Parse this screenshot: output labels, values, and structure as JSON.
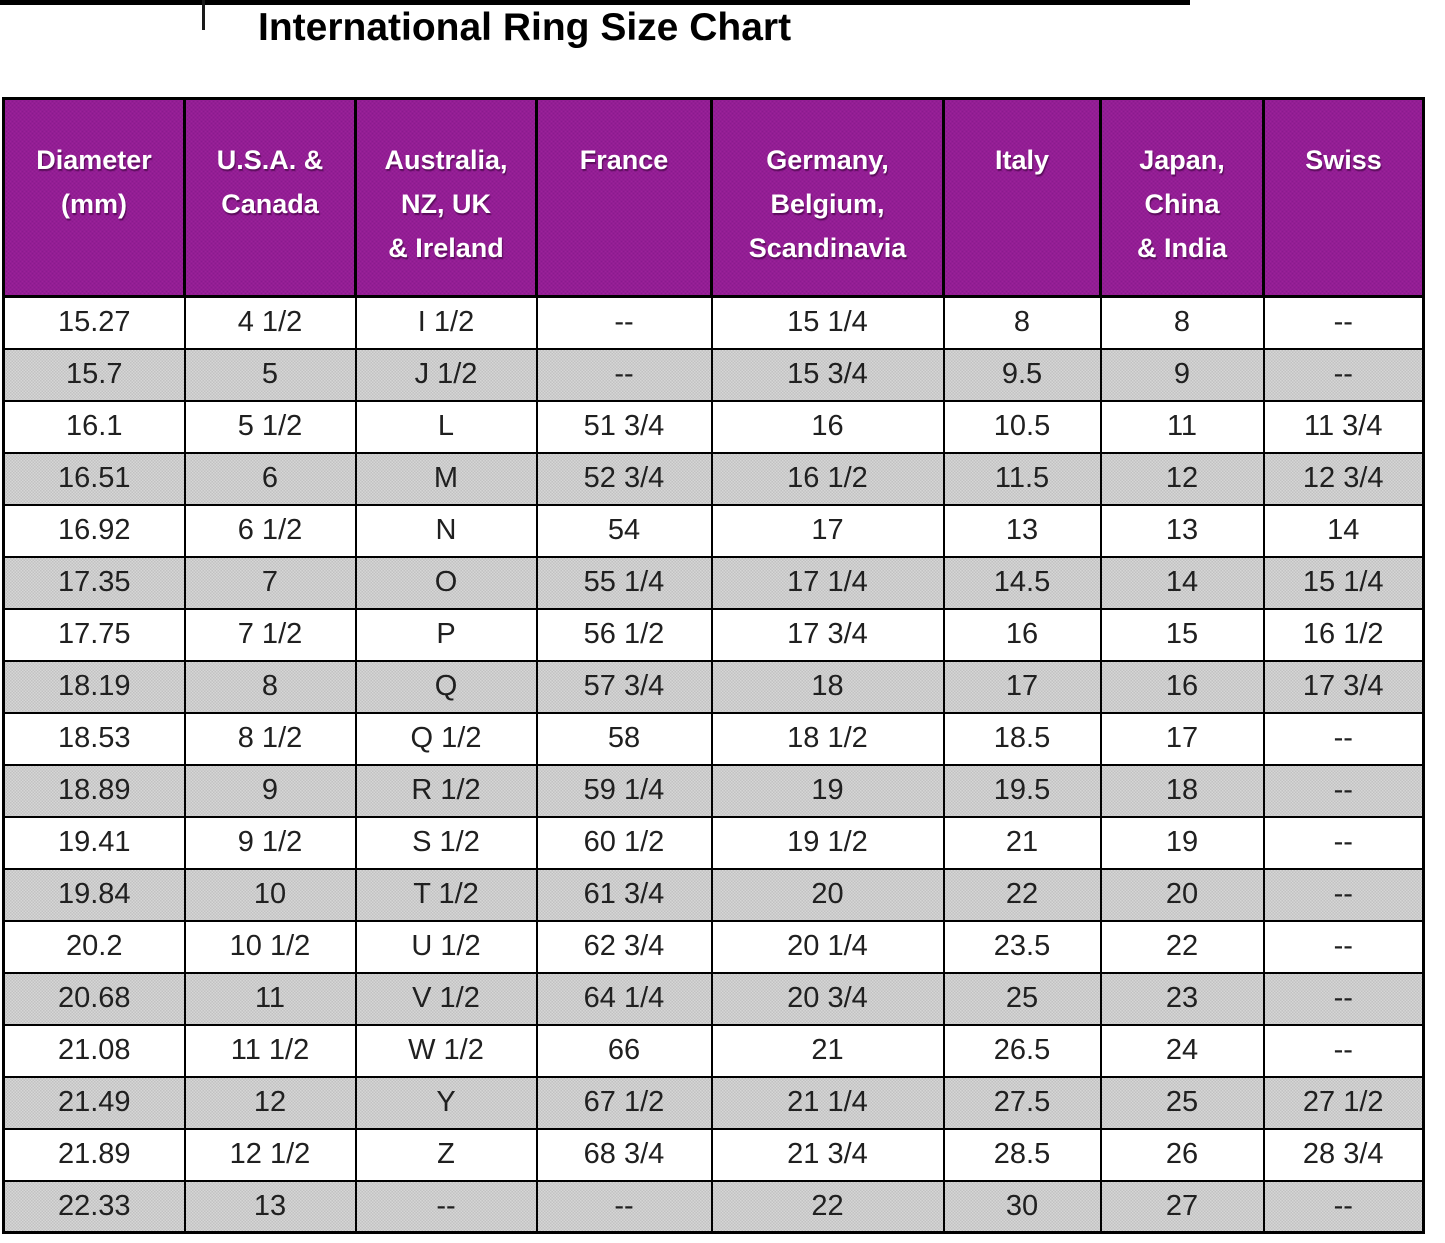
{
  "title": "International Ring Size Chart",
  "table": {
    "headers": [
      "Diameter\n(mm)",
      "U.S.A. &\nCanada",
      "Australia,\nNZ, UK\n& Ireland",
      "France",
      "Germany,\nBelgium,\nScandinavia",
      "Italy",
      "Japan,\nChina\n& India",
      "Swiss"
    ],
    "rows": [
      [
        "15.27",
        "4 1/2",
        "I 1/2",
        "--",
        "15 1/4",
        "8",
        "8",
        "--"
      ],
      [
        "15.7",
        "5",
        "J 1/2",
        "--",
        "15 3/4",
        "9.5",
        "9",
        "--"
      ],
      [
        "16.1",
        "5 1/2",
        "L",
        "51 3/4",
        "16",
        "10.5",
        "11",
        "11 3/4"
      ],
      [
        "16.51",
        "6",
        "M",
        "52 3/4",
        "16 1/2",
        "11.5",
        "12",
        "12 3/4"
      ],
      [
        "16.92",
        "6 1/2",
        "N",
        "54",
        "17",
        "13",
        "13",
        "14"
      ],
      [
        "17.35",
        "7",
        "O",
        "55 1/4",
        "17 1/4",
        "14.5",
        "14",
        "15 1/4"
      ],
      [
        "17.75",
        "7 1/2",
        "P",
        "56 1/2",
        "17 3/4",
        "16",
        "15",
        "16 1/2"
      ],
      [
        "18.19",
        "8",
        "Q",
        "57 3/4",
        "18",
        "17",
        "16",
        "17 3/4"
      ],
      [
        "18.53",
        "8 1/2",
        "Q 1/2",
        "58",
        "18 1/2",
        "18.5",
        "17",
        "--"
      ],
      [
        "18.89",
        "9",
        "R 1/2",
        "59 1/4",
        "19",
        "19.5",
        "18",
        "--"
      ],
      [
        "19.41",
        "9 1/2",
        "S 1/2",
        "60 1/2",
        "19 1/2",
        "21",
        "19",
        "--"
      ],
      [
        "19.84",
        "10",
        "T 1/2",
        "61 3/4",
        "20",
        "22",
        "20",
        "--"
      ],
      [
        "20.2",
        "10 1/2",
        "U 1/2",
        "62 3/4",
        "20 1/4",
        "23.5",
        "22",
        "--"
      ],
      [
        "20.68",
        "11",
        "V 1/2",
        "64 1/4",
        "20 3/4",
        "25",
        "23",
        "--"
      ],
      [
        "21.08",
        "11 1/2",
        "W 1/2",
        "66",
        "21",
        "26.5",
        "24",
        "--"
      ],
      [
        "21.49",
        "12",
        "Y",
        "67 1/2",
        "21 1/4",
        "27.5",
        "25",
        "27 1/2"
      ],
      [
        "21.89",
        "12 1/2",
        "Z",
        "68 3/4",
        "21 3/4",
        "28.5",
        "26",
        "28 3/4"
      ],
      [
        "22.33",
        "13",
        "--",
        "--",
        "22",
        "30",
        "27",
        "--"
      ]
    ]
  },
  "colors": {
    "header_bg": "#931E93",
    "header_text": "#FFFFFF",
    "row_bg": "#FFFFFF",
    "row_alt_bg": "#CACACA",
    "border": "#000000",
    "body_text": "#202020"
  }
}
